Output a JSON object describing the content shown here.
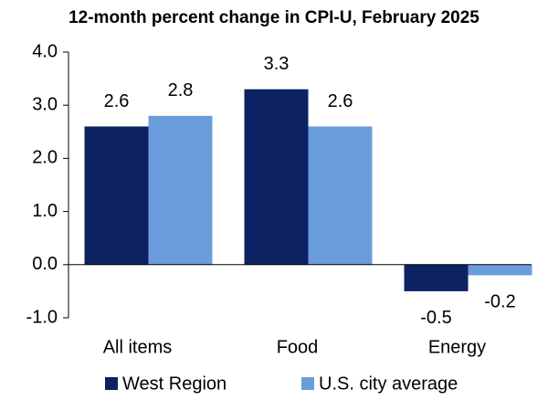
{
  "chart_data": {
    "type": "bar",
    "title": "12-month percent change in CPI-U, February 2025",
    "categories": [
      "All items",
      "Food",
      "Energy"
    ],
    "series": [
      {
        "name": "West Region",
        "color": "#0c2262",
        "values": [
          2.6,
          3.3,
          -0.5
        ]
      },
      {
        "name": "U.S. city average",
        "color": "#6b9ddd",
        "values": [
          2.8,
          2.6,
          -0.2
        ]
      }
    ],
    "ylim": [
      -1,
      4
    ],
    "yticks": [
      {
        "value": -1,
        "label": "-1.0"
      },
      {
        "value": 0,
        "label": "0.0"
      },
      {
        "value": 1,
        "label": "1.0"
      },
      {
        "value": 2,
        "label": "2.0"
      },
      {
        "value": 3,
        "label": "3.0"
      },
      {
        "value": 4,
        "label": "4.0"
      }
    ],
    "legend": "bottom"
  }
}
